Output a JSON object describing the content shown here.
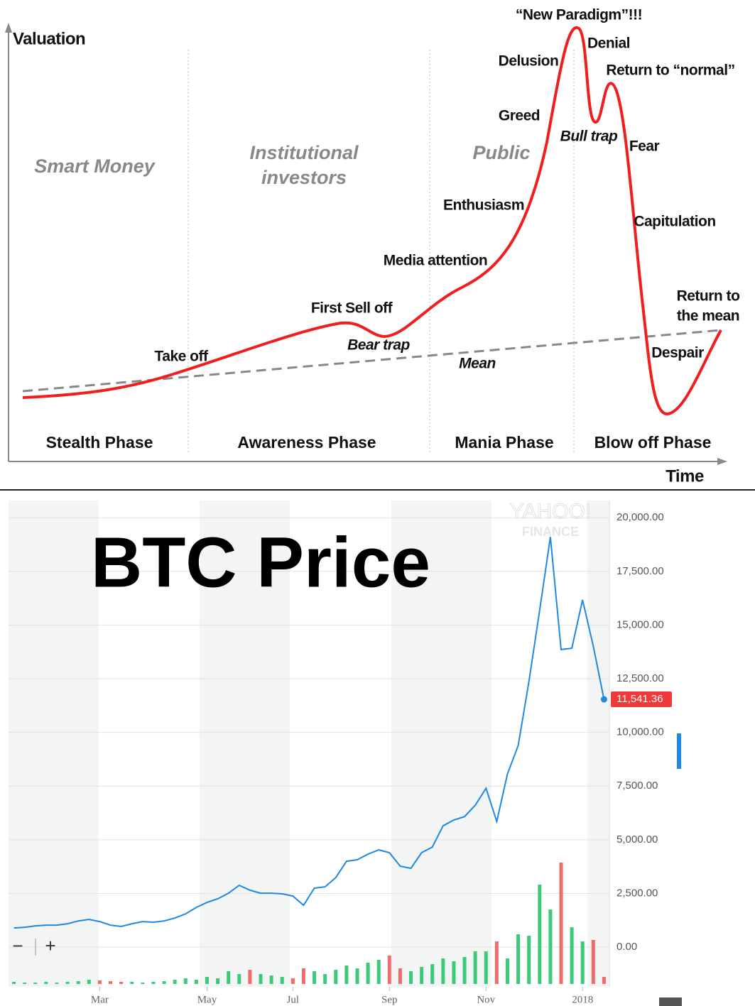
{
  "diagram": {
    "y_axis_label": "Valuation",
    "x_axis_label": "Time",
    "investor_groups": [
      [
        "Smart Money"
      ],
      [
        "Institutional",
        "investors"
      ],
      [
        "Public"
      ]
    ],
    "phases": [
      "Stealth Phase",
      "Awareness Phase",
      "Mania Phase",
      "Blow off Phase"
    ],
    "stages": [
      [
        "Take off"
      ],
      [
        "First Sell off"
      ],
      [
        "Bear trap"
      ],
      [
        "Media attention"
      ],
      [
        "Enthusiasm"
      ],
      [
        "Greed"
      ],
      [
        "Delusion"
      ],
      [
        "“New Paradigm”!!!"
      ],
      [
        "Denial"
      ],
      [
        "Return to “normal”"
      ],
      [
        "Bull trap"
      ],
      [
        "Fear"
      ],
      [
        "Capitulation"
      ],
      [
        "Return to",
        "the mean"
      ],
      [
        "Despair"
      ]
    ],
    "mean_label": "Mean"
  },
  "chart_data": {
    "type": "line",
    "title": "BTC Price",
    "watermark": [
      "YAHOO!",
      "FINANCE"
    ],
    "zoom_controls": [
      "−",
      "+"
    ],
    "categories": [
      null,
      null,
      null,
      null,
      null,
      null,
      null,
      null,
      "Mar",
      null,
      null,
      null,
      null,
      null,
      null,
      null,
      null,
      null,
      "May",
      null,
      null,
      null,
      null,
      null,
      null,
      null,
      "Jul",
      null,
      null,
      null,
      null,
      null,
      null,
      null,
      null,
      "Sep",
      null,
      null,
      null,
      null,
      null,
      null,
      null,
      null,
      "Nov",
      null,
      null,
      null,
      null,
      null,
      null,
      null,
      null,
      "2018",
      null,
      null
    ],
    "values": [
      890,
      925,
      990,
      1025,
      1025,
      1090,
      1220,
      1290,
      1190,
      1025,
      960,
      1090,
      1190,
      1160,
      1220,
      1355,
      1550,
      1850,
      2080,
      2250,
      2510,
      2880,
      2650,
      2510,
      2510,
      2480,
      2380,
      1950,
      2745,
      2810,
      3240,
      4000,
      4070,
      4330,
      4530,
      4400,
      3770,
      3670,
      4400,
      4660,
      5650,
      5920,
      6080,
      6610,
      7400,
      5850,
      8070,
      9390,
      12370,
      15680,
      19100,
      13860,
      13920,
      16170,
      14020,
      11541.36
    ],
    "value_labels": [
      null,
      null,
      null,
      null,
      null,
      null,
      null,
      null,
      null,
      null,
      null,
      null,
      null,
      null,
      null,
      null,
      null,
      null,
      null,
      null,
      null,
      null,
      null,
      null,
      null,
      null,
      null,
      null,
      null,
      null,
      null,
      null,
      null,
      null,
      null,
      null,
      null,
      null,
      null,
      null,
      null,
      null,
      null,
      null,
      null,
      null,
      null,
      null,
      null,
      null,
      null,
      null,
      null,
      null,
      null,
      "11,541.36"
    ],
    "color": "#1e88e5",
    "label_color": "#f03a3a",
    "volume": {
      "values": [
        3,
        2,
        2,
        3,
        2,
        3,
        4,
        6,
        5,
        4,
        3,
        3,
        2,
        3,
        4,
        6,
        8,
        6,
        10,
        8,
        18,
        14,
        20,
        14,
        12,
        10,
        8,
        22,
        18,
        14,
        20,
        26,
        22,
        30,
        34,
        40,
        22,
        18,
        24,
        28,
        36,
        32,
        38,
        46,
        46,
        60,
        36,
        70,
        68,
        140,
        105,
        171,
        80,
        60,
        62,
        10
      ],
      "colors": [
        "#3cc97a",
        "#3cc97a",
        "#3cc97a",
        "#3cc97a",
        "#3cc97a",
        "#3cc97a",
        "#3cc97a",
        "#3cc97a",
        "#f26b6b",
        "#f26b6b",
        "#f26b6b",
        "#3cc97a",
        "#3cc97a",
        "#3cc97a",
        "#3cc97a",
        "#3cc97a",
        "#3cc97a",
        "#3cc97a",
        "#3cc97a",
        "#3cc97a",
        "#3cc97a",
        "#3cc97a",
        "#f26b6b",
        "#3cc97a",
        "#3cc97a",
        "#3cc97a",
        "#f26b6b",
        "#f26b6b",
        "#3cc97a",
        "#3cc97a",
        "#3cc97a",
        "#3cc97a",
        "#3cc97a",
        "#3cc97a",
        "#3cc97a",
        "#f26b6b",
        "#f26b6b",
        "#3cc97a",
        "#3cc97a",
        "#3cc97a",
        "#3cc97a",
        "#3cc97a",
        "#3cc97a",
        "#3cc97a",
        "#3cc97a",
        "#f26b6b",
        "#3cc97a",
        "#3cc97a",
        "#3cc97a",
        "#3cc97a",
        "#3cc97a",
        "#f26b6b",
        "#3cc97a",
        "#3cc97a",
        "#f26b6b",
        "#f26b6b"
      ],
      "vlim": [
        0,
        200
      ]
    },
    "ylim": [
      -1850,
      20800
    ],
    "yticks": [
      {
        "value": 0,
        "label": "0.00"
      },
      {
        "value": 2500,
        "label": "2,500.00"
      },
      {
        "value": 5000,
        "label": "5,000.00"
      },
      {
        "value": 7500,
        "label": "7,500.00"
      },
      {
        "value": 10000,
        "label": "10,000.00"
      },
      {
        "value": 12500,
        "label": "12,500.00"
      },
      {
        "value": 15000,
        "label": "15,000.00"
      },
      {
        "value": 17500,
        "label": "17,500.00"
      },
      {
        "value": 20000,
        "label": "20,000.00"
      }
    ],
    "grid": true
  }
}
